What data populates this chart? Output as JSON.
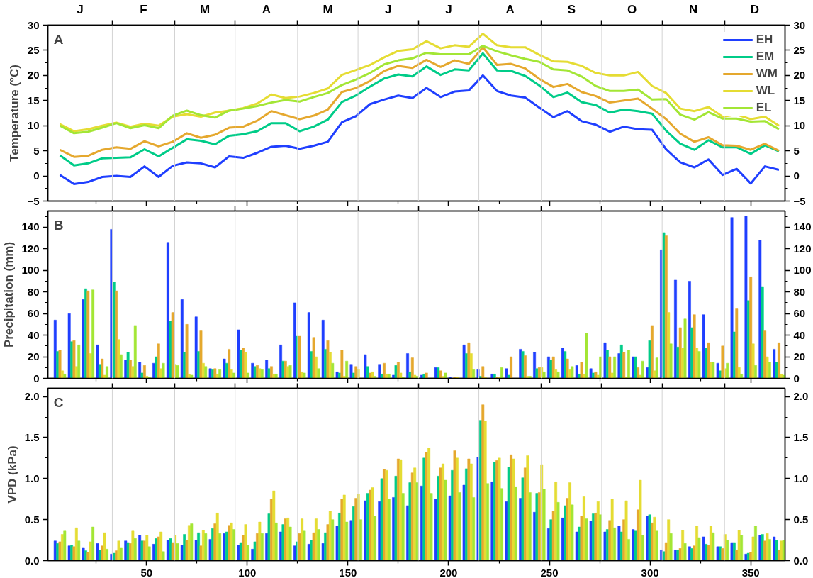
{
  "chart_data": [
    {
      "type": "line",
      "ylabel": "Temperature (°C)",
      "legend": "top right",
      "tick_labels": "y",
      "annotations": [
        "A",
        "J",
        "F",
        "M",
        "A",
        "M",
        "J",
        "J",
        "A",
        "S",
        "O",
        "N",
        "D"
      ],
      "x": [
        7,
        14,
        21,
        28,
        35,
        42,
        49,
        56,
        63,
        70,
        77,
        84,
        91,
        98,
        105,
        112,
        119,
        126,
        133,
        140,
        147,
        154,
        161,
        168,
        175,
        182,
        189,
        196,
        203,
        210,
        217,
        224,
        231,
        238,
        245,
        252,
        259,
        266,
        273,
        280,
        287,
        294,
        301,
        308,
        315,
        322,
        329,
        336,
        343,
        350,
        357,
        364
      ],
      "series": [
        {
          "name": "EH",
          "color": "#1f3fff",
          "values": [
            0.2,
            -1.6,
            -1.2,
            -0.2,
            0,
            -0.2,
            1.9,
            -0.2,
            2.0,
            2.7,
            2.5,
            1.7,
            3.9,
            3.6,
            4.6,
            5.8,
            6.0,
            5.4,
            6.0,
            6.8,
            10.7,
            11.9,
            14.3,
            15.2,
            16.0,
            15.5,
            17.5,
            15.7,
            16.8,
            17.0,
            20.0,
            16.9,
            16.0,
            15.6,
            13.6,
            11.7,
            12.9,
            10.9,
            10.2,
            8.8,
            9.8,
            9.3,
            9.2,
            5.3,
            2.7,
            1.7,
            3.3,
            0.2,
            1.4,
            -1.5,
            1.9,
            1.2
          ]
        },
        {
          "name": "EM",
          "color": "#00cc88",
          "values": [
            4.1,
            2.1,
            2.5,
            3.5,
            3.6,
            3.7,
            5.3,
            3.9,
            5.6,
            7.3,
            7.0,
            6.3,
            8.0,
            8.3,
            8.9,
            10.5,
            10.5,
            8.9,
            9.8,
            11.2,
            14.7,
            16.0,
            17.8,
            19.4,
            20.2,
            19.8,
            21.8,
            20.1,
            21.2,
            21.0,
            24.4,
            21.0,
            20.9,
            19.9,
            18.0,
            15.7,
            16.6,
            14.7,
            14.1,
            12.6,
            13.2,
            12.9,
            12.4,
            9.0,
            6.4,
            5.2,
            7.1,
            5.7,
            5.7,
            4.4,
            6.1,
            4.9
          ]
        },
        {
          "name": "WM",
          "color": "#e5a82e",
          "values": [
            5.2,
            3.8,
            4.0,
            5.2,
            5.7,
            5.4,
            6.9,
            5.9,
            6.8,
            8.5,
            7.6,
            8.2,
            9.6,
            9.8,
            11.0,
            12.9,
            12.1,
            11.3,
            12.0,
            13.2,
            16.7,
            17.5,
            18.9,
            20.9,
            21.9,
            21.5,
            23.1,
            21.7,
            23.0,
            22.3,
            25.6,
            22.1,
            22.3,
            21.4,
            19.3,
            17.7,
            18.3,
            16.7,
            15.9,
            14.6,
            15.0,
            15.4,
            13.4,
            11.3,
            8.4,
            6.8,
            7.7,
            6.1,
            6.0,
            5.2,
            6.4,
            5.0
          ]
        },
        {
          "name": "WL",
          "color": "#e5dc33",
          "values": [
            10.3,
            8.9,
            9.3,
            10.0,
            10.6,
            9.8,
            10.4,
            10.0,
            11.8,
            12.3,
            11.8,
            12.6,
            13.0,
            13.5,
            14.4,
            16.2,
            15.5,
            15.8,
            16.5,
            17.4,
            20.1,
            21.1,
            22.1,
            23.6,
            24.9,
            25.2,
            26.8,
            25.4,
            26.0,
            25.7,
            28.3,
            26.0,
            25.6,
            25.6,
            24.1,
            22.8,
            22.7,
            21.9,
            20.5,
            20.0,
            20.0,
            20.7,
            17.9,
            16.5,
            13.4,
            12.9,
            13.7,
            11.8,
            12.2,
            11.3,
            11.8,
            10.0
          ]
        },
        {
          "name": "EL",
          "color": "#a3e635",
          "values": [
            10.0,
            8.5,
            8.8,
            9.6,
            10.5,
            9.5,
            10.1,
            9.5,
            12.0,
            13.0,
            12.1,
            11.6,
            13.0,
            13.4,
            13.9,
            14.6,
            15.1,
            14.8,
            15.7,
            16.5,
            18.1,
            19.2,
            20.5,
            22.2,
            23.0,
            23.4,
            24.5,
            24.2,
            24.2,
            24.2,
            25.9,
            24.8,
            24.0,
            23.3,
            22.7,
            21.2,
            21.0,
            19.8,
            17.9,
            16.9,
            16.9,
            17.2,
            15.2,
            15.3,
            12.2,
            11.2,
            12.7,
            11.4,
            11.4,
            10.8,
            10.9,
            9.3
          ]
        }
      ],
      "xlim": [
        1,
        367
      ],
      "xticks": [
        {
          "value": 25,
          "label": null
        },
        50,
        {
          "value": 75,
          "label": null
        },
        100,
        {
          "value": 125,
          "label": null
        },
        150,
        {
          "value": 175,
          "label": null
        },
        200,
        {
          "value": 225,
          "label": null
        },
        250,
        {
          "value": 275,
          "label": null
        },
        300,
        {
          "value": 325,
          "label": null
        },
        350
      ],
      "ylim": [
        -5,
        30
      ],
      "yticks": [
        -5,
        {
          "value": -2.5,
          "label": null
        },
        0,
        {
          "value": 2.5,
          "label": null
        },
        5,
        {
          "value": 7.5,
          "label": null
        },
        10,
        {
          "value": 12.5,
          "label": null
        },
        15,
        {
          "value": 17.5,
          "label": null
        },
        20,
        {
          "value": 22.5,
          "label": null
        },
        25,
        {
          "value": 27.5,
          "label": null
        },
        30
      ],
      "y2lim": [
        -5,
        30
      ],
      "y2ticks": [
        -5,
        {
          "value": -2.5,
          "label": null
        },
        0,
        {
          "value": 2.5,
          "label": null
        },
        5,
        {
          "value": 7.5,
          "label": null
        },
        10,
        {
          "value": 12.5,
          "label": null
        },
        15,
        {
          "value": 17.5,
          "label": null
        },
        20,
        {
          "value": 22.5,
          "label": null
        },
        25,
        {
          "value": 27.5,
          "label": null
        },
        30
      ],
      "ref_lines": [
        {
          "axis": "x",
          "value": 33,
          "color": "#d3d3d3"
        },
        {
          "axis": "x",
          "value": 64,
          "color": "#d3d3d3"
        },
        {
          "axis": "x",
          "value": 94,
          "color": "#d3d3d3"
        },
        {
          "axis": "x",
          "value": 125,
          "color": "#d3d3d3"
        },
        {
          "axis": "x",
          "value": 155,
          "color": "#d3d3d3"
        },
        {
          "axis": "x",
          "value": 185,
          "color": "#d3d3d3"
        },
        {
          "axis": "x",
          "value": 215,
          "color": "#d3d3d3"
        },
        {
          "axis": "x",
          "value": 246,
          "color": "#d3d3d3"
        },
        {
          "axis": "x",
          "value": 276,
          "color": "#d3d3d3"
        },
        {
          "axis": "x",
          "value": 306,
          "color": "#d3d3d3"
        },
        {
          "axis": "x",
          "value": 337,
          "color": "#d3d3d3"
        }
      ]
    },
    {
      "type": "bar",
      "ylabel": "Precipitation (mm)",
      "annotations": [
        "B"
      ],
      "tick_labels": "y",
      "x": [
        7,
        14,
        21,
        28,
        35,
        42,
        49,
        56,
        63,
        70,
        77,
        84,
        91,
        98,
        105,
        112,
        119,
        126,
        133,
        140,
        147,
        154,
        161,
        168,
        175,
        182,
        189,
        196,
        203,
        210,
        217,
        224,
        231,
        238,
        245,
        252,
        259,
        266,
        273,
        280,
        287,
        294,
        301,
        308,
        315,
        322,
        329,
        336,
        343,
        350,
        357,
        364
      ],
      "series": [
        {
          "color": "#1f3fff",
          "values": [
            54,
            60,
            73,
            31,
            138,
            17,
            15,
            14,
            126,
            73,
            57,
            9,
            18,
            45,
            14,
            17,
            31,
            70,
            61,
            54,
            6,
            13,
            22,
            13,
            3,
            23,
            3,
            10,
            1,
            31,
            8,
            4,
            9,
            27,
            24,
            20,
            28,
            12,
            9,
            33,
            23,
            20,
            10,
            119,
            91,
            90,
            59,
            14,
            149,
            150,
            128,
            27
          ]
        },
        {
          "color": "#00cc88",
          "values": [
            25,
            34,
            83,
            13,
            89,
            24,
            5,
            20,
            53,
            24,
            25,
            8,
            14,
            26,
            11,
            9,
            16,
            39,
            25,
            27,
            5,
            5,
            11,
            4,
            12,
            6,
            4,
            10,
            0,
            23,
            2,
            4,
            3,
            25,
            9,
            17,
            25,
            4,
            5,
            26,
            31,
            20,
            35,
            135,
            29,
            47,
            28,
            7,
            43,
            72,
            85,
            15
          ]
        },
        {
          "color": "#e5a82e",
          "values": [
            26,
            35,
            81,
            18,
            81,
            17,
            12,
            32,
            61,
            50,
            44,
            9,
            27,
            28,
            12,
            11,
            16,
            39,
            38,
            35,
            26,
            11,
            5,
            14,
            15,
            19,
            5,
            7,
            1,
            33,
            11,
            1,
            20,
            21,
            10,
            20,
            18,
            15,
            6,
            20,
            24,
            10,
            49,
            132,
            47,
            59,
            33,
            30,
            65,
            94,
            44,
            33
          ]
        },
        {
          "color": "#e5dc33",
          "values": [
            7,
            11,
            23,
            3,
            36,
            11,
            2,
            9,
            13,
            4,
            14,
            4,
            8,
            24,
            9,
            4,
            11,
            6,
            20,
            24,
            2,
            8,
            6,
            4,
            5,
            3,
            0,
            2,
            1,
            23,
            1,
            1,
            0,
            2,
            10,
            8,
            8,
            4,
            3,
            5,
            1,
            3,
            7,
            61,
            28,
            28,
            15,
            9,
            10,
            32,
            20,
            4
          ]
        },
        {
          "color": "#a3e635",
          "values": [
            4,
            31,
            82,
            11,
            22,
            49,
            1,
            14,
            12,
            3,
            11,
            8,
            5,
            5,
            8,
            4,
            12,
            5,
            9,
            14,
            16,
            0,
            2,
            4,
            1,
            2,
            0,
            5,
            0,
            8,
            0,
            10,
            0,
            2,
            6,
            6,
            11,
            42,
            20,
            20,
            26,
            16,
            19,
            32,
            55,
            25,
            15,
            14,
            4,
            12,
            15,
            3
          ]
        }
      ],
      "xlim": [
        1,
        367
      ],
      "xticks": [
        {
          "value": 25,
          "label": null
        },
        50,
        {
          "value": 75,
          "label": null
        },
        100,
        {
          "value": 125,
          "label": null
        },
        150,
        {
          "value": 175,
          "label": null
        },
        200,
        {
          "value": 225,
          "label": null
        },
        250,
        {
          "value": 275,
          "label": null
        },
        300,
        {
          "value": 325,
          "label": null
        },
        350
      ],
      "ylim": [
        0,
        155
      ],
      "yticks": [
        0,
        {
          "value": 10,
          "label": null
        },
        20,
        {
          "value": 30,
          "label": null
        },
        40,
        {
          "value": 50,
          "label": null
        },
        60,
        {
          "value": 70,
          "label": null
        },
        80,
        {
          "value": 90,
          "label": null
        },
        100,
        {
          "value": 110,
          "label": null
        },
        120,
        {
          "value": 130,
          "label": null
        },
        140,
        {
          "value": 150,
          "label": null
        }
      ],
      "y2lim": [
        0,
        155
      ],
      "y2ticks": [
        0,
        {
          "value": 10,
          "label": null
        },
        20,
        {
          "value": 30,
          "label": null
        },
        40,
        {
          "value": 50,
          "label": null
        },
        60,
        {
          "value": 70,
          "label": null
        },
        80,
        {
          "value": 90,
          "label": null
        },
        100,
        {
          "value": 110,
          "label": null
        },
        120,
        {
          "value": 130,
          "label": null
        },
        140,
        {
          "value": 150,
          "label": null
        }
      ],
      "ref_lines": [
        {
          "axis": "x",
          "value": 33,
          "color": "#d3d3d3"
        },
        {
          "axis": "x",
          "value": 64,
          "color": "#d3d3d3"
        },
        {
          "axis": "x",
          "value": 94,
          "color": "#d3d3d3"
        },
        {
          "axis": "x",
          "value": 125,
          "color": "#d3d3d3"
        },
        {
          "axis": "x",
          "value": 155,
          "color": "#d3d3d3"
        },
        {
          "axis": "x",
          "value": 185,
          "color": "#d3d3d3"
        },
        {
          "axis": "x",
          "value": 215,
          "color": "#d3d3d3"
        },
        {
          "axis": "x",
          "value": 246,
          "color": "#d3d3d3"
        },
        {
          "axis": "x",
          "value": 276,
          "color": "#d3d3d3"
        },
        {
          "axis": "x",
          "value": 306,
          "color": "#d3d3d3"
        },
        {
          "axis": "x",
          "value": 337,
          "color": "#d3d3d3"
        }
      ]
    },
    {
      "type": "bar",
      "ylabel": "VPD (kPa)",
      "annotations": [
        "C"
      ],
      "x": [
        7,
        14,
        21,
        28,
        35,
        42,
        49,
        56,
        63,
        70,
        77,
        84,
        91,
        98,
        105,
        112,
        119,
        126,
        133,
        140,
        147,
        154,
        161,
        168,
        175,
        182,
        189,
        196,
        203,
        210,
        217,
        224,
        231,
        238,
        245,
        252,
        259,
        266,
        273,
        280,
        287,
        294,
        301,
        308,
        315,
        322,
        329,
        336,
        343,
        350,
        357,
        364
      ],
      "series": [
        {
          "color": "#1f3fff",
          "values": [
            0.24,
            0.18,
            0.16,
            0.21,
            0.08,
            0.24,
            0.31,
            0.2,
            0.25,
            0.19,
            0.25,
            0.26,
            0.33,
            0.19,
            0.14,
            0.33,
            0.35,
            0.18,
            0.2,
            0.21,
            0.42,
            0.49,
            0.73,
            0.72,
            0.77,
            0.67,
            0.91,
            0.75,
            0.79,
            0.92,
            1.26,
            0.96,
            0.72,
            0.76,
            0.59,
            0.39,
            0.52,
            0.35,
            0.48,
            0.35,
            0.42,
            0.38,
            0.54,
            0.13,
            0.13,
            0.17,
            0.29,
            0.17,
            0.22,
            0.08,
            0.31,
            0.29
          ]
        },
        {
          "color": "#00cc88",
          "values": [
            0.21,
            0.19,
            0.12,
            0.13,
            0.09,
            0.22,
            0.24,
            0.27,
            0.27,
            0.32,
            0.34,
            0.39,
            0.35,
            0.22,
            0.23,
            0.57,
            0.44,
            0.23,
            0.25,
            0.34,
            0.58,
            0.66,
            0.82,
            1.0,
            1.03,
            0.95,
            1.25,
            1.03,
            1.1,
            1.12,
            1.71,
            1.2,
            1.14,
            1.01,
            0.82,
            0.5,
            0.67,
            0.41,
            0.57,
            0.38,
            0.35,
            0.36,
            0.56,
            0.11,
            0.13,
            0.15,
            0.2,
            0.17,
            0.22,
            0.09,
            0.32,
            0.25
          ]
        },
        {
          "color": "#e5a82e",
          "values": [
            0.23,
            0.17,
            0.1,
            0.18,
            0.12,
            0.21,
            0.24,
            0.29,
            0.22,
            0.25,
            0.18,
            0.45,
            0.43,
            0.31,
            0.33,
            0.75,
            0.51,
            0.33,
            0.34,
            0.44,
            0.75,
            0.76,
            0.86,
            1.11,
            1.24,
            1.07,
            1.32,
            1.13,
            1.34,
            1.24,
            1.9,
            1.22,
            1.29,
            1.13,
            0.83,
            0.6,
            0.76,
            0.54,
            0.58,
            0.49,
            0.5,
            0.62,
            0.46,
            0.22,
            0.15,
            0.18,
            0.19,
            0.15,
            0.13,
            0.1,
            0.24,
            0.13
          ]
        },
        {
          "color": "#e5dc33",
          "values": [
            0.32,
            0.4,
            0.23,
            0.34,
            0.24,
            0.36,
            0.31,
            0.35,
            0.31,
            0.43,
            0.37,
            0.58,
            0.46,
            0.44,
            0.47,
            0.85,
            0.52,
            0.51,
            0.51,
            0.6,
            0.8,
            0.81,
            0.89,
            1.1,
            1.23,
            1.13,
            1.37,
            1.18,
            1.25,
            1.18,
            1.7,
            1.25,
            1.24,
            1.28,
            1.17,
            0.96,
            0.95,
            0.78,
            0.72,
            0.75,
            0.73,
            0.98,
            0.53,
            0.5,
            0.37,
            0.42,
            0.42,
            0.32,
            0.37,
            0.29,
            0.33,
            0.24
          ]
        },
        {
          "color": "#a3e635",
          "values": [
            0.36,
            0.24,
            0.41,
            0.14,
            0.16,
            0.27,
            0.17,
            0.11,
            0.21,
            0.45,
            0.33,
            0.33,
            0.38,
            0.19,
            0.33,
            0.46,
            0.41,
            0.36,
            0.38,
            0.5,
            0.47,
            0.5,
            0.54,
            0.75,
            0.82,
            0.95,
            0.82,
            0.98,
            0.83,
            0.77,
            0.94,
            0.88,
            0.9,
            0.83,
            0.87,
            0.71,
            0.68,
            0.51,
            0.56,
            0.4,
            0.26,
            0.31,
            0.36,
            0.33,
            0.21,
            0.28,
            0.34,
            0.25,
            0.31,
            0.42,
            0.26,
            0.25
          ]
        }
      ],
      "xlim": [
        1,
        367
      ],
      "xticks": [
        {
          "value": 25,
          "label": null
        },
        50,
        {
          "value": 75,
          "label": null
        },
        100,
        {
          "value": 125,
          "label": null
        },
        150,
        {
          "value": 175,
          "label": null
        },
        200,
        {
          "value": 225,
          "label": null
        },
        250,
        {
          "value": 275,
          "label": null
        },
        300,
        {
          "value": 325,
          "label": null
        },
        350
      ],
      "ylim": [
        0,
        2.1
      ],
      "yticks": [
        {
          "value": 0,
          "label": "0.0"
        },
        {
          "value": 0.25,
          "label": null
        },
        {
          "value": 0.5,
          "label": "0.5"
        },
        {
          "value": 0.75,
          "label": null
        },
        {
          "value": 1,
          "label": "1.0"
        },
        {
          "value": 1.25,
          "label": null
        },
        {
          "value": 1.5,
          "label": "1.5"
        },
        {
          "value": 1.75,
          "label": null
        },
        {
          "value": 2,
          "label": "2.0"
        }
      ],
      "y2lim": [
        0,
        2.1
      ],
      "y2ticks": [
        {
          "value": 0,
          "label": "0.0"
        },
        {
          "value": 0.25,
          "label": null
        },
        {
          "value": 0.5,
          "label": "0.5"
        },
        {
          "value": 0.75,
          "label": null
        },
        {
          "value": 1,
          "label": "1.0"
        },
        {
          "value": 1.25,
          "label": null
        },
        {
          "value": 1.5,
          "label": "1.5"
        },
        {
          "value": 1.75,
          "label": null
        },
        {
          "value": 2,
          "label": "2.0"
        }
      ],
      "ref_lines": [
        {
          "axis": "x",
          "value": 33,
          "color": "#d3d3d3"
        },
        {
          "axis": "x",
          "value": 64,
          "color": "#d3d3d3"
        },
        {
          "axis": "x",
          "value": 94,
          "color": "#d3d3d3"
        },
        {
          "axis": "x",
          "value": 125,
          "color": "#d3d3d3"
        },
        {
          "axis": "x",
          "value": 155,
          "color": "#d3d3d3"
        },
        {
          "axis": "x",
          "value": 185,
          "color": "#d3d3d3"
        },
        {
          "axis": "x",
          "value": 215,
          "color": "#d3d3d3"
        },
        {
          "axis": "x",
          "value": 246,
          "color": "#d3d3d3"
        },
        {
          "axis": "x",
          "value": 276,
          "color": "#d3d3d3"
        },
        {
          "axis": "x",
          "value": 306,
          "color": "#d3d3d3"
        },
        {
          "axis": "x",
          "value": 337,
          "color": "#d3d3d3"
        }
      ]
    }
  ]
}
